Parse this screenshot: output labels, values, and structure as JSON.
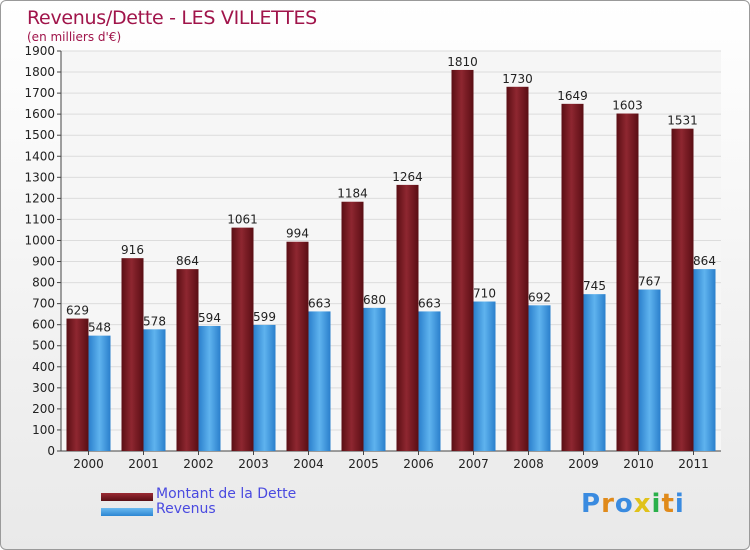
{
  "chart_data": {
    "type": "bar",
    "title": "Revenus/Dette - LES VILLETTES",
    "subtitle": "(en milliers d'€)",
    "categories": [
      "2000",
      "2001",
      "2002",
      "2003",
      "2004",
      "2005",
      "2006",
      "2007",
      "2008",
      "2009",
      "2010",
      "2011"
    ],
    "series": [
      {
        "name": "Montant de la Dette",
        "color": "#7a1a22",
        "values": [
          629,
          916,
          864,
          1061,
          994,
          1184,
          1264,
          1810,
          1730,
          1649,
          1603,
          1531
        ]
      },
      {
        "name": "Revenus",
        "color": "#3f9be2",
        "values": [
          548,
          578,
          594,
          599,
          663,
          680,
          663,
          710,
          692,
          745,
          767,
          864
        ]
      }
    ],
    "ylim": [
      0,
      1900
    ],
    "yticks": [
      0,
      100,
      200,
      300,
      400,
      500,
      600,
      700,
      800,
      900,
      1000,
      1100,
      1200,
      1300,
      1400,
      1500,
      1600,
      1700,
      1800,
      1900
    ],
    "grid": true,
    "legend_position": "bottom-left"
  },
  "brand": {
    "letters": [
      "P",
      "r",
      "o",
      "x",
      "i",
      "t",
      "i"
    ],
    "colors": [
      "#3a8be0",
      "#e08a1a",
      "#3a8be0",
      "#e0c21a",
      "#2ab04a",
      "#e08a1a",
      "#3a8be0"
    ]
  }
}
